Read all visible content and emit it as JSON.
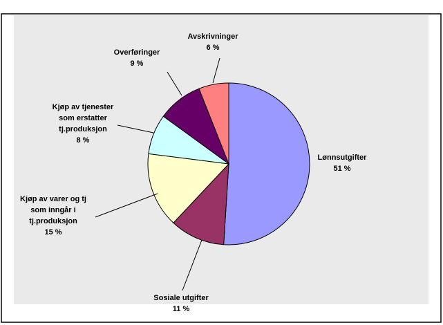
{
  "chart_data": {
    "type": "pie",
    "categories": [
      "Lønnsutgifter",
      "Sosiale utgifter",
      "Kjøp av varer og tj\nsom inngår i\ntj.produksjon",
      "Kjøp av tjenester\nsom erstatter\ntj.produksjon",
      "Overføringer",
      "Avskrivninger"
    ],
    "values": [
      51,
      11,
      15,
      8,
      9,
      6
    ],
    "value_labels": [
      "51 %",
      "11 %",
      "15 %",
      "8 %",
      "9 %",
      "6 %"
    ],
    "colors": [
      "#9999ff",
      "#993366",
      "#ffffcc",
      "#ccffff",
      "#660066",
      "#ff8080"
    ]
  }
}
